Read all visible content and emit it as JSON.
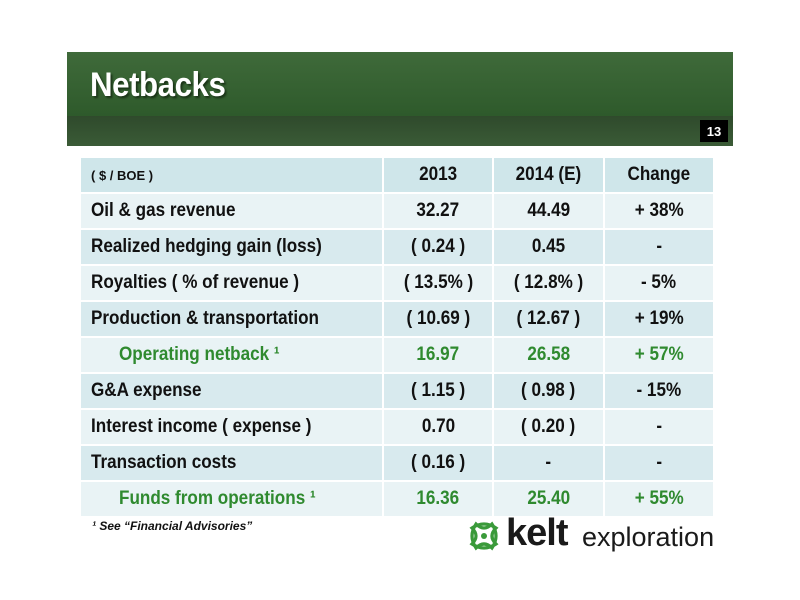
{
  "slide": {
    "title": "Netbacks",
    "page_number": "13"
  },
  "table": {
    "headers": [
      "( $ / BOE )",
      "2013",
      "2014 (E)",
      "Change"
    ],
    "rows": [
      {
        "label": "Oil & gas revenue",
        "y2013": "32.27",
        "y2014": "44.49",
        "change": "+ 38%"
      },
      {
        "label": "Realized hedging gain (loss)",
        "y2013": "( 0.24 )",
        "y2014": "0.45",
        "change": "-"
      },
      {
        "label": "Royalties ( % of revenue )",
        "y2013": "( 13.5% )",
        "y2014": "( 12.8% )",
        "change": "- 5%"
      },
      {
        "label": "Production & transportation",
        "y2013": "( 10.69 )",
        "y2014": "( 12.67 )",
        "change": "+ 19%"
      },
      {
        "label": "Operating netback ¹",
        "y2013": "16.97",
        "y2014": "26.58",
        "change": "+ 57%"
      },
      {
        "label": "G&A expense",
        "y2013": "( 1.15 )",
        "y2014": "( 0.98 )",
        "change": "- 15%"
      },
      {
        "label": "Interest income ( expense )",
        "y2013": "0.70",
        "y2014": "( 0.20 )",
        "change": "-"
      },
      {
        "label": "Transaction costs",
        "y2013": "( 0.16 )",
        "y2014": "-",
        "change": "-"
      },
      {
        "label": "Funds from operations ¹",
        "y2013": "16.36",
        "y2014": "25.40",
        "change": "+ 55%"
      }
    ]
  },
  "footnote": "¹ See “Financial Advisories”",
  "logo": {
    "word1": "kelt",
    "word2": "exploration",
    "icon": "celtic-knot-icon"
  },
  "colors": {
    "banner_green": "#3f6a3a",
    "subtotal_green": "#2f8a2f",
    "header_blue": "#cfe6ea",
    "row_light": "#e9f3f5",
    "row_dark": "#d8eaee",
    "logo_green": "#3a9a3a"
  }
}
